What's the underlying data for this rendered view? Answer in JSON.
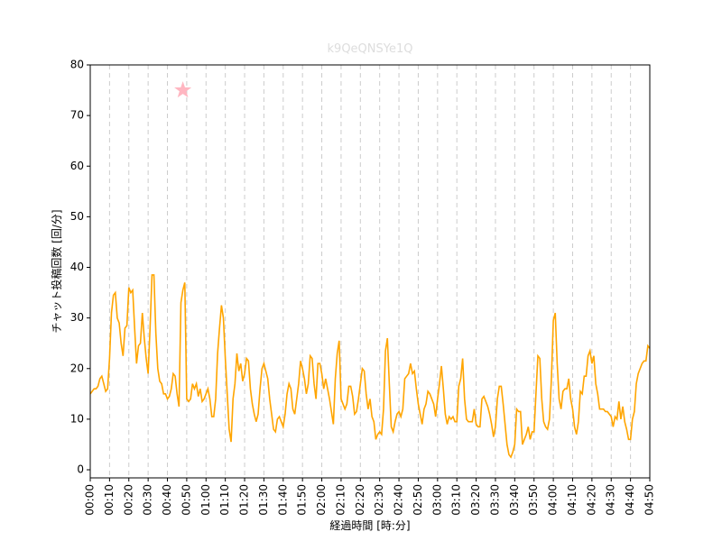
{
  "chart_data": {
    "type": "line",
    "title": "k9QeQNSYe1Q",
    "xlabel": "経過時間 [時:分]",
    "ylabel": "チャット投稿回数 [回/分]",
    "x": [
      0,
      1,
      2,
      3,
      4,
      5,
      6,
      7,
      8,
      9,
      10,
      11,
      12,
      13,
      14,
      15,
      16,
      17,
      18,
      19,
      20,
      21,
      22,
      23,
      24,
      25,
      26,
      27,
      28,
      29,
      30,
      31,
      32,
      33,
      34,
      35,
      36,
      37,
      38,
      39,
      40,
      41,
      42,
      43,
      44,
      45,
      46,
      47,
      48,
      49,
      50,
      51,
      52,
      53,
      54,
      55,
      56,
      57,
      58,
      59,
      60,
      61,
      62,
      63,
      64,
      65,
      66,
      67,
      68,
      69,
      70,
      71,
      72,
      73,
      74,
      75,
      76,
      77,
      78,
      79,
      80,
      81,
      82,
      83,
      84,
      85,
      86,
      87,
      88,
      89,
      90,
      91,
      92,
      93,
      94,
      95,
      96,
      97,
      98,
      99,
      100,
      101,
      102,
      103,
      104,
      105,
      106,
      107,
      108,
      109,
      110,
      111,
      112,
      113,
      114,
      115,
      116,
      117,
      118,
      119,
      120,
      121,
      122,
      123,
      124,
      125,
      126,
      127,
      128,
      129,
      130,
      131,
      132,
      133,
      134,
      135,
      136,
      137,
      138,
      139,
      140,
      141,
      142,
      143,
      144,
      145,
      146,
      147,
      148,
      149,
      150,
      151,
      152,
      153,
      154,
      155,
      156,
      157,
      158,
      159,
      160,
      161,
      162,
      163,
      164,
      165,
      166,
      167,
      168,
      169,
      170,
      171,
      172,
      173,
      174,
      175,
      176,
      177,
      178,
      179,
      180,
      181,
      182,
      183,
      184,
      185,
      186,
      187,
      188,
      189,
      190,
      191,
      192,
      193,
      194,
      195,
      196,
      197,
      198,
      199,
      200,
      201,
      202,
      203,
      204,
      205,
      206,
      207,
      208,
      209,
      210,
      211,
      212,
      213,
      214,
      215,
      216,
      217,
      218,
      219,
      220,
      221,
      222,
      223,
      224,
      225,
      226,
      227,
      228,
      229,
      230,
      231,
      232,
      233,
      234,
      235,
      236,
      237,
      238,
      239,
      240,
      241,
      242,
      243,
      244,
      245,
      246,
      247,
      248,
      249,
      250,
      251,
      252,
      253,
      254,
      255,
      256,
      257,
      258,
      259,
      260,
      261,
      262,
      263,
      264,
      265,
      266,
      267,
      268,
      269,
      270,
      271,
      272,
      273,
      274,
      275,
      276,
      277,
      278,
      279,
      280,
      281,
      282,
      283,
      284,
      285,
      286,
      287,
      288,
      289,
      290
    ],
    "series": [
      {
        "color": "#ffa500",
        "values": [
          15,
          15.5,
          16,
          16,
          16.5,
          18,
          18.5,
          17,
          15.5,
          16,
          22,
          31,
          34.5,
          35,
          30,
          29,
          25,
          22.5,
          28,
          28.5,
          36,
          35,
          35.5,
          28,
          21,
          24.5,
          25,
          31,
          26,
          22,
          19,
          28,
          38.5,
          38.5,
          27,
          20,
          17.5,
          17,
          15,
          15,
          14,
          14.5,
          16,
          19,
          18.5,
          15,
          12.5,
          33,
          35.5,
          37,
          14,
          13.5,
          14,
          17,
          16,
          17,
          14.5,
          16,
          13.5,
          14,
          15,
          16,
          14,
          10.5,
          10.5,
          14,
          23,
          28,
          32.5,
          30,
          22,
          15,
          8,
          5.5,
          14,
          17,
          23,
          19.5,
          21,
          17.5,
          19,
          22,
          21.5,
          16,
          13,
          11,
          9.5,
          11,
          16,
          20,
          21,
          19.5,
          18,
          14,
          11,
          8,
          7.5,
          10,
          10.5,
          9.5,
          8.5,
          11,
          15,
          17,
          16,
          12,
          11,
          14,
          17,
          21.5,
          20,
          18,
          15,
          17,
          22.5,
          22,
          17,
          14,
          21,
          21,
          19,
          16,
          18,
          16,
          14,
          11.5,
          9,
          18,
          23,
          25.5,
          14,
          13,
          12,
          13,
          16.5,
          16.5,
          14.5,
          11,
          11.5,
          14,
          17,
          20,
          19.5,
          15,
          12,
          14,
          10.5,
          9.5,
          6,
          7,
          7.5,
          7,
          12,
          23.5,
          26,
          17,
          8.5,
          7.5,
          9.5,
          11,
          11.5,
          10.5,
          12,
          18,
          18.5,
          19,
          21,
          19,
          19.5,
          16,
          13,
          11,
          9,
          12,
          13,
          15.5,
          15,
          14,
          13,
          10.5,
          14,
          17,
          20.5,
          16,
          11,
          9,
          10.5,
          10,
          10.5,
          9.5,
          9.5,
          16.5,
          18,
          22,
          14,
          10,
          9.5,
          9.5,
          9.5,
          12,
          9,
          8.5,
          8.5,
          14,
          14.5,
          13.5,
          12.5,
          11,
          9,
          6.5,
          8.5,
          14,
          16.5,
          16.5,
          13,
          9,
          5,
          3,
          2.5,
          3.5,
          5,
          12,
          11.5,
          11.5,
          5,
          6,
          7,
          8.5,
          6,
          7.5,
          7.5,
          15,
          22.5,
          22,
          14,
          9.5,
          8.5,
          8,
          10,
          18,
          29.5,
          31,
          21,
          14,
          12,
          15.5,
          16,
          16,
          18,
          14,
          12,
          8.5,
          7,
          9.5,
          15.5,
          15,
          18.5,
          18.5,
          22.5,
          23.5,
          21,
          22.5,
          17,
          15,
          12,
          12,
          12,
          11.5,
          11.5,
          11,
          10.5,
          8.5,
          10.5,
          10,
          13.5,
          10,
          12.5,
          9.5,
          8,
          6,
          6,
          10,
          11.5,
          17,
          19,
          20,
          21,
          21.5,
          21.5,
          24.5,
          24
        ]
      }
    ],
    "highlight": {
      "x": 48,
      "y": 75,
      "color": "#ffb6c1"
    },
    "xlim": [
      0,
      290
    ],
    "ylim": [
      -1.6,
      80
    ],
    "xticks": [
      {
        "value": 0,
        "label": "00:00"
      },
      {
        "value": 10,
        "label": "00:10"
      },
      {
        "value": 20,
        "label": "00:20"
      },
      {
        "value": 30,
        "label": "00:30"
      },
      {
        "value": 40,
        "label": "00:40"
      },
      {
        "value": 50,
        "label": "00:50"
      },
      {
        "value": 60,
        "label": "01:00"
      },
      {
        "value": 70,
        "label": "01:10"
      },
      {
        "value": 80,
        "label": "01:20"
      },
      {
        "value": 90,
        "label": "01:30"
      },
      {
        "value": 100,
        "label": "01:40"
      },
      {
        "value": 110,
        "label": "01:50"
      },
      {
        "value": 120,
        "label": "02:00"
      },
      {
        "value": 130,
        "label": "02:10"
      },
      {
        "value": 140,
        "label": "02:20"
      },
      {
        "value": 150,
        "label": "02:30"
      },
      {
        "value": 160,
        "label": "02:40"
      },
      {
        "value": 170,
        "label": "02:50"
      },
      {
        "value": 180,
        "label": "03:00"
      },
      {
        "value": 190,
        "label": "03:10"
      },
      {
        "value": 200,
        "label": "03:20"
      },
      {
        "value": 210,
        "label": "03:30"
      },
      {
        "value": 220,
        "label": "03:40"
      },
      {
        "value": 230,
        "label": "03:50"
      },
      {
        "value": 240,
        "label": "04:00"
      },
      {
        "value": 250,
        "label": "04:10"
      },
      {
        "value": 260,
        "label": "04:20"
      },
      {
        "value": 270,
        "label": "04:30"
      },
      {
        "value": 280,
        "label": "04:40"
      },
      {
        "value": 290,
        "label": "04:50"
      }
    ],
    "yticks": [
      0,
      10,
      20,
      30,
      40,
      50,
      60,
      70,
      80
    ],
    "xgrid": true
  }
}
